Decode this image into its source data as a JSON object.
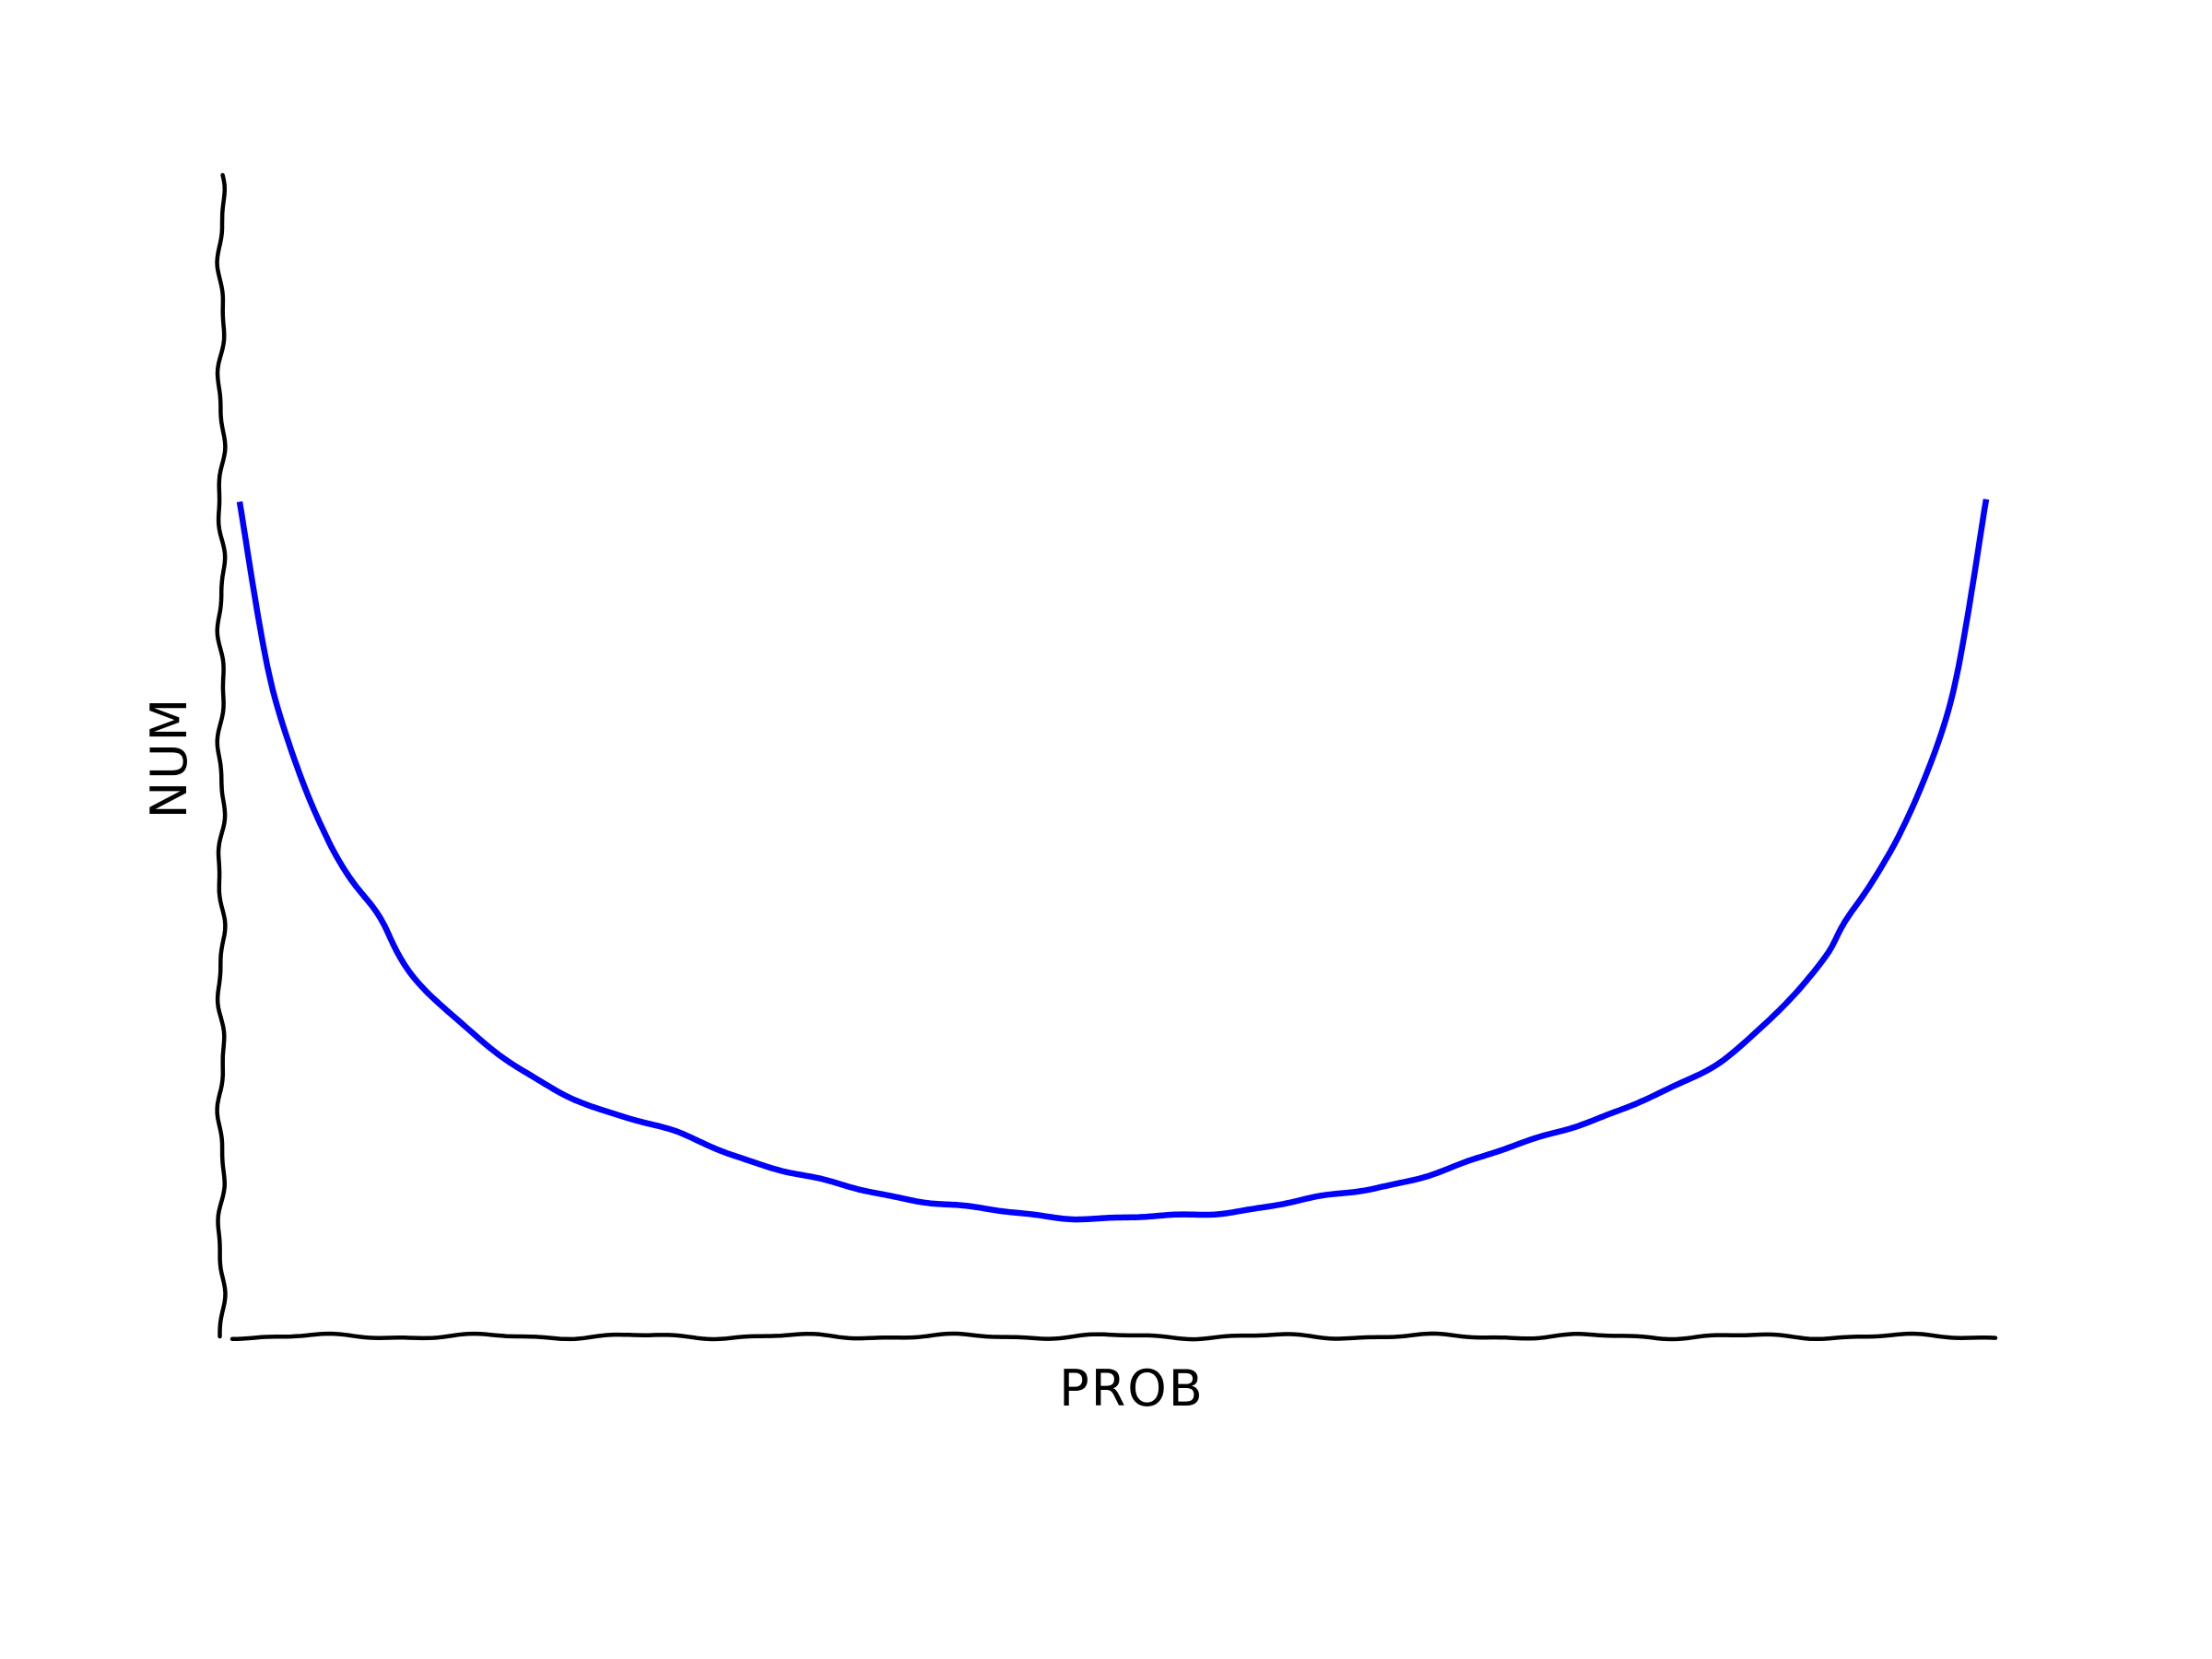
{
  "chart_data": {
    "type": "line",
    "title": "",
    "xlabel": "PROB",
    "ylabel": "NUM",
    "xlim": [
      0,
      1
    ],
    "ylim": [
      0,
      1
    ],
    "grid": false,
    "legend": "none",
    "series": [
      {
        "color": "#0000ff",
        "x": [
          0.0,
          0.02,
          0.05,
          0.08,
          0.1,
          0.15,
          0.2,
          0.25,
          0.3,
          0.35,
          0.4,
          0.45,
          0.5,
          0.55,
          0.6,
          0.65,
          0.7,
          0.75,
          0.8,
          0.85,
          0.9,
          0.92,
          0.95,
          0.98,
          1.0
        ],
        "y": [
          0.72,
          0.55,
          0.43,
          0.36,
          0.31,
          0.24,
          0.2,
          0.175,
          0.148,
          0.128,
          0.115,
          0.105,
          0.102,
          0.105,
          0.115,
          0.128,
          0.148,
          0.175,
          0.2,
          0.24,
          0.31,
          0.36,
          0.43,
          0.55,
          0.72
        ]
      }
    ]
  }
}
